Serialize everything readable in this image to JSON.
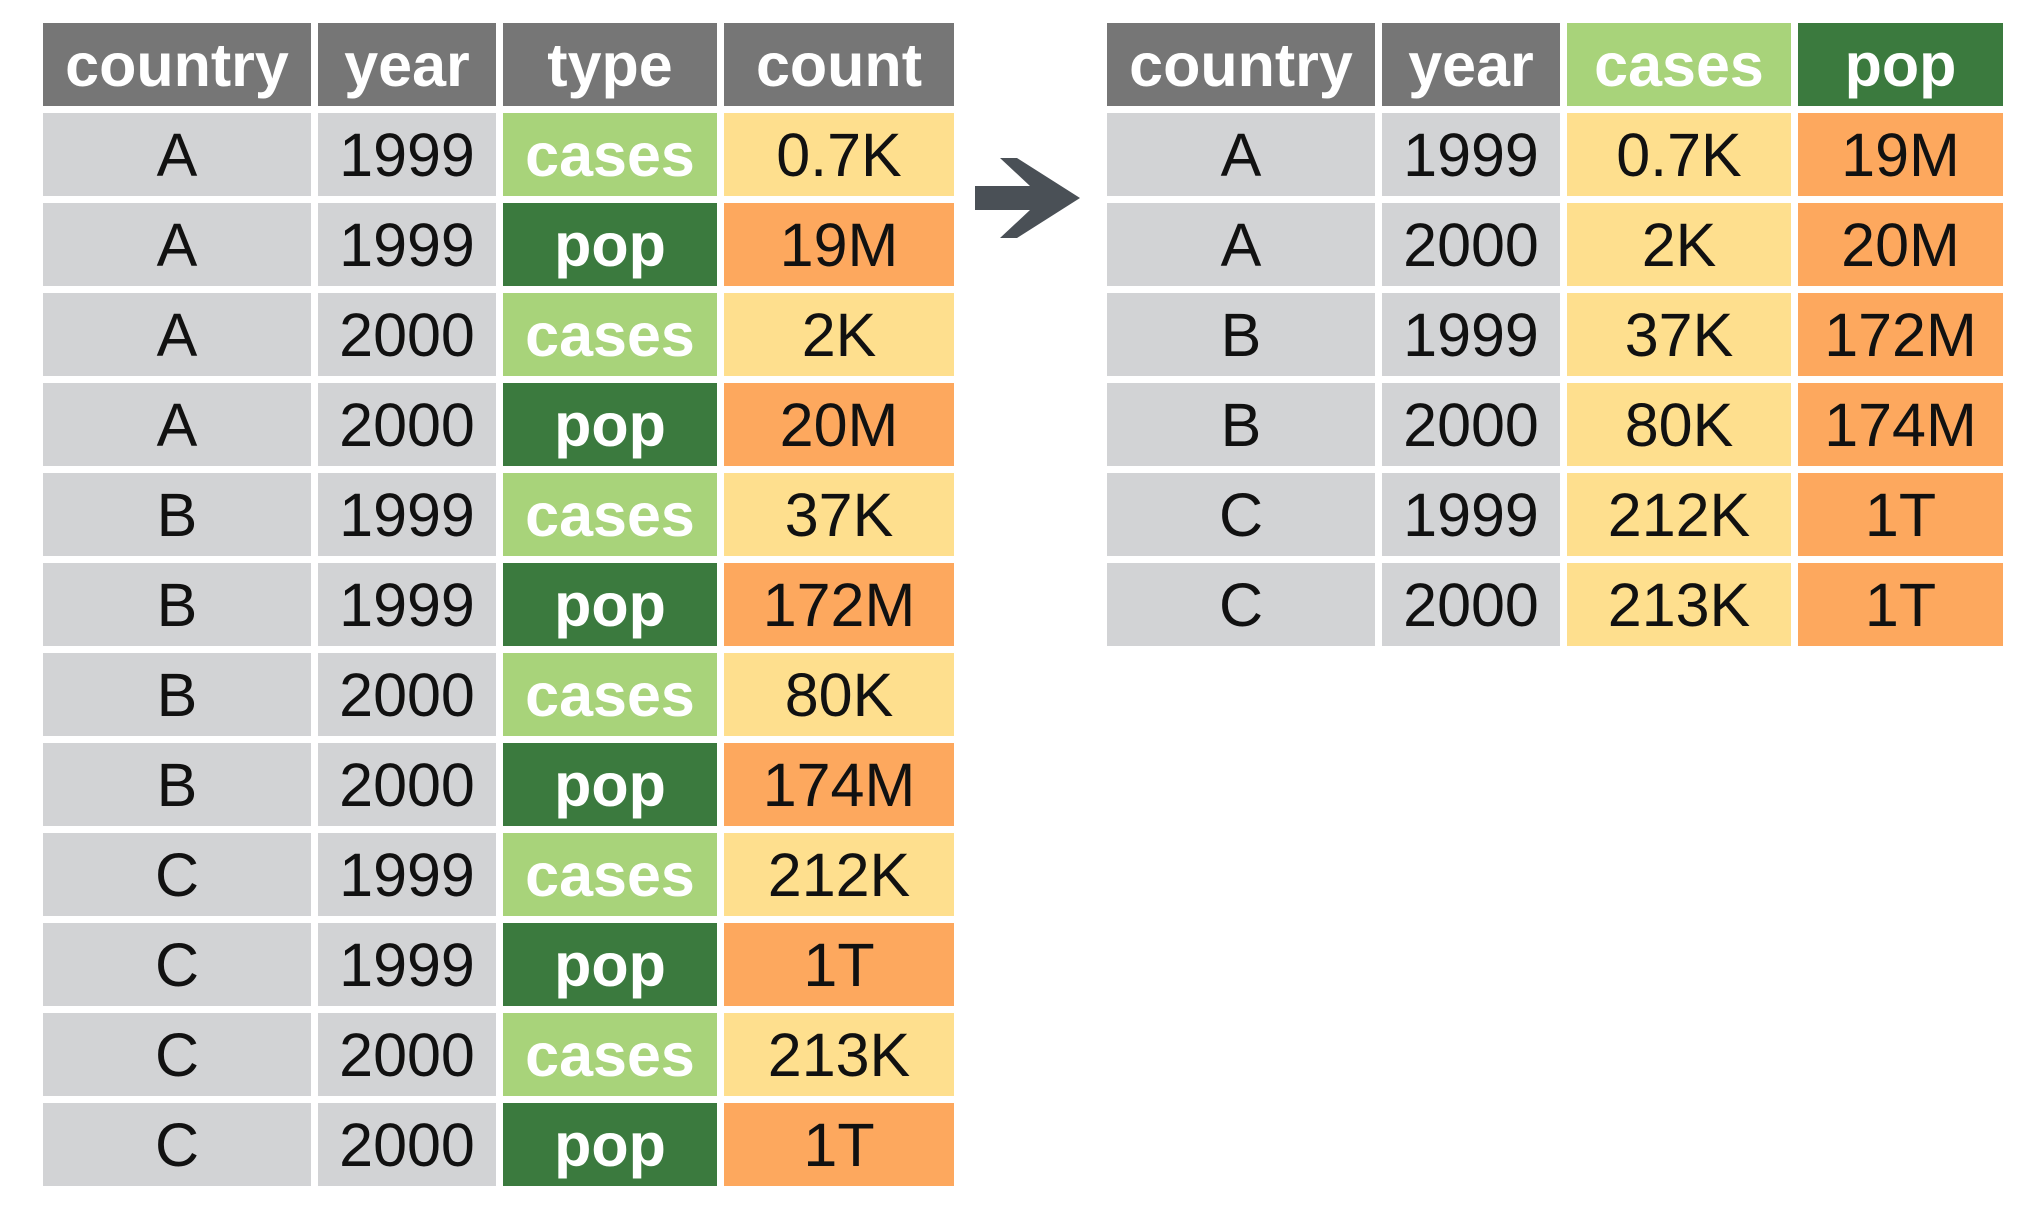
{
  "colors": {
    "header": "#767676",
    "key": "#d2d3d5",
    "cases_type": "#a8d37a",
    "pop_type": "#3b7a3e",
    "cases_value": "#fedf8e",
    "pop_value": "#fda85e",
    "arrow": "#4a5056"
  },
  "icons": {
    "transform": "right-arrow-icon"
  },
  "long_table": {
    "columns": [
      "country",
      "year",
      "type",
      "count"
    ],
    "rows": [
      {
        "country": "A",
        "year": "1999",
        "type": "cases",
        "count": "0.7K"
      },
      {
        "country": "A",
        "year": "1999",
        "type": "pop",
        "count": "19M"
      },
      {
        "country": "A",
        "year": "2000",
        "type": "cases",
        "count": "2K"
      },
      {
        "country": "A",
        "year": "2000",
        "type": "pop",
        "count": "20M"
      },
      {
        "country": "B",
        "year": "1999",
        "type": "cases",
        "count": "37K"
      },
      {
        "country": "B",
        "year": "1999",
        "type": "pop",
        "count": "172M"
      },
      {
        "country": "B",
        "year": "2000",
        "type": "cases",
        "count": "80K"
      },
      {
        "country": "B",
        "year": "2000",
        "type": "pop",
        "count": "174M"
      },
      {
        "country": "C",
        "year": "1999",
        "type": "cases",
        "count": "212K"
      },
      {
        "country": "C",
        "year": "1999",
        "type": "pop",
        "count": "1T"
      },
      {
        "country": "C",
        "year": "2000",
        "type": "cases",
        "count": "213K"
      },
      {
        "country": "C",
        "year": "2000",
        "type": "pop",
        "count": "1T"
      }
    ]
  },
  "wide_table": {
    "columns": [
      "country",
      "year",
      "cases",
      "pop"
    ],
    "rows": [
      {
        "country": "A",
        "year": "1999",
        "cases": "0.7K",
        "pop": "19M"
      },
      {
        "country": "A",
        "year": "2000",
        "cases": "2K",
        "pop": "20M"
      },
      {
        "country": "B",
        "year": "1999",
        "cases": "37K",
        "pop": "172M"
      },
      {
        "country": "B",
        "year": "2000",
        "cases": "80K",
        "pop": "174M"
      },
      {
        "country": "C",
        "year": "1999",
        "cases": "212K",
        "pop": "1T"
      },
      {
        "country": "C",
        "year": "2000",
        "cases": "213K",
        "pop": "1T"
      }
    ]
  }
}
